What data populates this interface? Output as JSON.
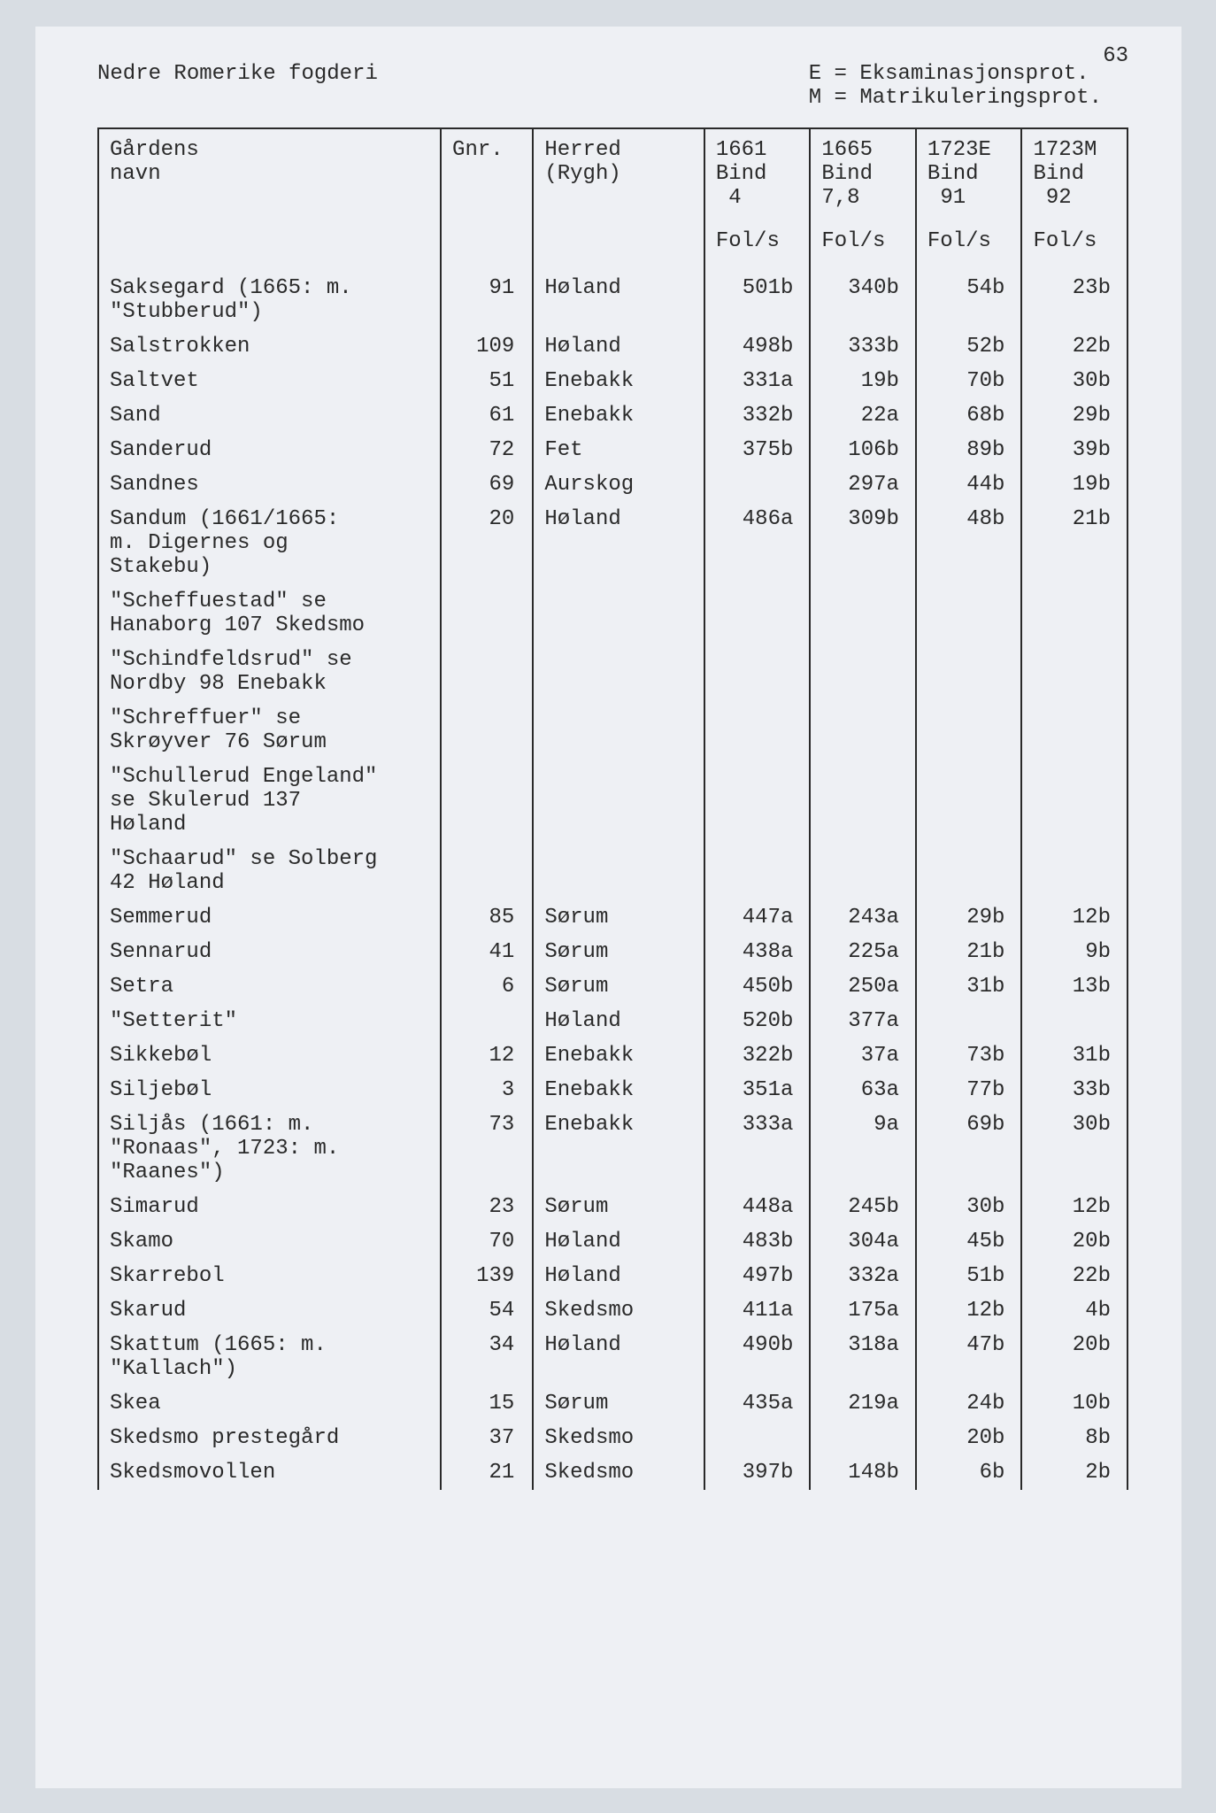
{
  "page_number": "63",
  "title_left": "Nedre Romerike fogderi",
  "title_right": "E = Eksaminasjonsprot.\nM = Matrikuleringsprot.",
  "columns": {
    "name_h1": "Gårdens",
    "name_h2": "navn",
    "gnr": "Gnr.",
    "herred_h1": "Herred",
    "herred_h2": "(Rygh)",
    "y1_h1": "1661",
    "y1_h2": "Bind",
    "y1_h3": "4",
    "y2_h1": "1665",
    "y2_h2": "Bind",
    "y2_h3": "7,8",
    "y3_h1": "1723E",
    "y3_h2": "Bind",
    "y3_h3": "91",
    "y4_h1": "1723M",
    "y4_h2": "Bind",
    "y4_h3": "92",
    "fols": "Fol/s"
  },
  "rows": [
    {
      "name": "Saksegard (1665: m.\n\"Stubberud\")",
      "gnr": "91",
      "herred": "Høland",
      "y1": "501b",
      "y2": "340b",
      "y3": "54b",
      "y4": "23b"
    },
    {
      "name": "Salstrokken",
      "gnr": "109",
      "herred": "Høland",
      "y1": "498b",
      "y2": "333b",
      "y3": "52b",
      "y4": "22b"
    },
    {
      "name": "Saltvet",
      "gnr": "51",
      "herred": "Enebakk",
      "y1": "331a",
      "y2": "19b",
      "y3": "70b",
      "y4": "30b"
    },
    {
      "name": "Sand",
      "gnr": "61",
      "herred": "Enebakk",
      "y1": "332b",
      "y2": "22a",
      "y3": "68b",
      "y4": "29b"
    },
    {
      "name": "Sanderud",
      "gnr": "72",
      "herred": "Fet",
      "y1": "375b",
      "y2": "106b",
      "y3": "89b",
      "y4": "39b"
    },
    {
      "name": "Sandnes",
      "gnr": "69",
      "herred": "Aurskog",
      "y1": "",
      "y2": "297a",
      "y3": "44b",
      "y4": "19b"
    },
    {
      "name": "Sandum (1661/1665:\nm. Digernes og\nStakebu)",
      "gnr": "20",
      "herred": "Høland",
      "y1": "486a",
      "y2": "309b",
      "y3": "48b",
      "y4": "21b"
    },
    {
      "name": "\"Scheffuestad\" se\nHanaborg 107 Skedsmo",
      "gnr": "",
      "herred": "",
      "y1": "",
      "y2": "",
      "y3": "",
      "y4": ""
    },
    {
      "name": "\"Schindfeldsrud\" se\nNordby 98 Enebakk",
      "gnr": "",
      "herred": "",
      "y1": "",
      "y2": "",
      "y3": "",
      "y4": ""
    },
    {
      "name": "\"Schreffuer\" se\nSkrøyver 76 Sørum",
      "gnr": "",
      "herred": "",
      "y1": "",
      "y2": "",
      "y3": "",
      "y4": ""
    },
    {
      "name": "\"Schullerud Engeland\"\nse Skulerud 137\nHøland",
      "gnr": "",
      "herred": "",
      "y1": "",
      "y2": "",
      "y3": "",
      "y4": ""
    },
    {
      "name": "\"Schaarud\" se Solberg\n42 Høland",
      "gnr": "",
      "herred": "",
      "y1": "",
      "y2": "",
      "y3": "",
      "y4": ""
    },
    {
      "name": "Semmerud",
      "gnr": "85",
      "herred": "Sørum",
      "y1": "447a",
      "y2": "243a",
      "y3": "29b",
      "y4": "12b"
    },
    {
      "name": "Sennarud",
      "gnr": "41",
      "herred": "Sørum",
      "y1": "438a",
      "y2": "225a",
      "y3": "21b",
      "y4": "9b"
    },
    {
      "name": "Setra",
      "gnr": "6",
      "herred": "Sørum",
      "y1": "450b",
      "y2": "250a",
      "y3": "31b",
      "y4": "13b"
    },
    {
      "name": "\"Setterit\"",
      "gnr": "",
      "herred": "Høland",
      "y1": "520b",
      "y2": "377a",
      "y3": "",
      "y4": ""
    },
    {
      "name": "Sikkebøl",
      "gnr": "12",
      "herred": "Enebakk",
      "y1": "322b",
      "y2": "37a",
      "y3": "73b",
      "y4": "31b"
    },
    {
      "name": "Siljebøl",
      "gnr": "3",
      "herred": "Enebakk",
      "y1": "351a",
      "y2": "63a",
      "y3": "77b",
      "y4": "33b"
    },
    {
      "name": "Siljås (1661: m.\n\"Ronaas\", 1723: m.\n\"Raanes\")",
      "gnr": "73",
      "herred": "Enebakk",
      "y1": "333a",
      "y2": "9a",
      "y3": "69b",
      "y4": "30b"
    },
    {
      "name": "Simarud",
      "gnr": "23",
      "herred": "Sørum",
      "y1": "448a",
      "y2": "245b",
      "y3": "30b",
      "y4": "12b"
    },
    {
      "name": "Skamo",
      "gnr": "70",
      "herred": "Høland",
      "y1": "483b",
      "y2": "304a",
      "y3": "45b",
      "y4": "20b"
    },
    {
      "name": "Skarrebol",
      "gnr": "139",
      "herred": "Høland",
      "y1": "497b",
      "y2": "332a",
      "y3": "51b",
      "y4": "22b"
    },
    {
      "name": "Skarud",
      "gnr": "54",
      "herred": "Skedsmo",
      "y1": "411a",
      "y2": "175a",
      "y3": "12b",
      "y4": "4b"
    },
    {
      "name": "Skattum (1665: m.\n\"Kallach\")",
      "gnr": "34",
      "herred": "Høland",
      "y1": "490b",
      "y2": "318a",
      "y3": "47b",
      "y4": "20b"
    },
    {
      "name": "Skea",
      "gnr": "15",
      "herred": "Sørum",
      "y1": "435a",
      "y2": "219a",
      "y3": "24b",
      "y4": "10b"
    },
    {
      "name": "Skedsmo prestegård",
      "gnr": "37",
      "herred": "Skedsmo",
      "y1": "",
      "y2": "",
      "y3": "20b",
      "y4": "8b"
    },
    {
      "name": "Skedsmovollen",
      "gnr": "21",
      "herred": "Skedsmo",
      "y1": "397b",
      "y2": "148b",
      "y3": "6b",
      "y4": "2b"
    }
  ]
}
